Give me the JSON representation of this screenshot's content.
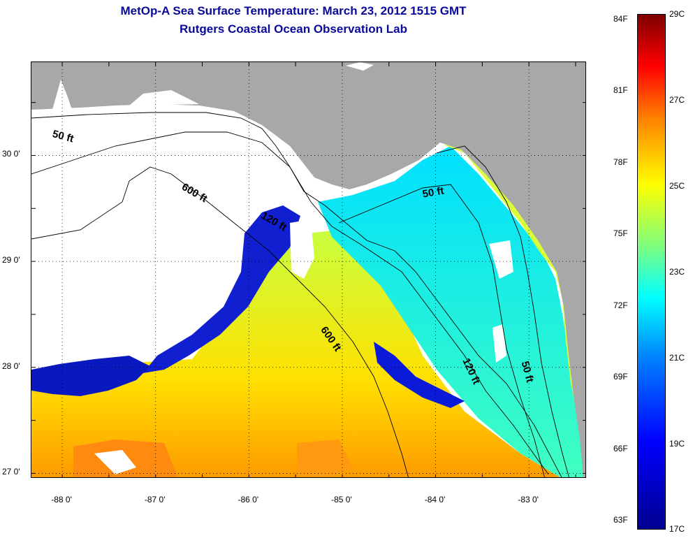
{
  "title": {
    "line1": "MetOp-A Sea Surface Temperature:  March 23, 2012 1515 GMT",
    "line2": "Rutgers Coastal Ocean Observation Lab"
  },
  "map": {
    "lon_range": [
      -88.33,
      -82.38
    ],
    "lat_range": [
      26.95,
      30.88
    ],
    "lat_ticks": [
      {
        "value": 30,
        "label": "30 0'"
      },
      {
        "value": 29,
        "label": "29 0'"
      },
      {
        "value": 28,
        "label": "28 0'"
      },
      {
        "value": 27,
        "label": "27 0'"
      }
    ],
    "lon_ticks": [
      {
        "value": -88,
        "label": "-88 0'"
      },
      {
        "value": -87,
        "label": "-87 0'"
      },
      {
        "value": -86,
        "label": "-86 0'"
      },
      {
        "value": -85,
        "label": "-85 0'"
      },
      {
        "value": -84,
        "label": "-84 0'"
      },
      {
        "value": -83,
        "label": "-83 0'"
      }
    ],
    "contour_labels": [
      {
        "text": "50 ft",
        "lon": -88.0,
        "lat": 30.15,
        "rotate": 15
      },
      {
        "text": "600 ft",
        "lon": -86.6,
        "lat": 29.62,
        "rotate": 30
      },
      {
        "text": "120 ft",
        "lon": -85.75,
        "lat": 29.35,
        "rotate": 30
      },
      {
        "text": "50 ft",
        "lon": -84.02,
        "lat": 29.62,
        "rotate": -10
      },
      {
        "text": "600 ft",
        "lon": -85.15,
        "lat": 28.25,
        "rotate": 55
      },
      {
        "text": "120 ft",
        "lon": -83.65,
        "lat": 27.95,
        "rotate": 65
      },
      {
        "text": "50 ft",
        "lon": -83.05,
        "lat": 27.95,
        "rotate": 75
      }
    ],
    "land_color": "#a8a8a8",
    "no_data_color": "#ffffff"
  },
  "colorbar": {
    "min_c": 17,
    "max_c": 29,
    "celsius_labels": [
      "29C",
      "27C",
      "25C",
      "23C",
      "21C",
      "19C",
      "17C"
    ],
    "fahrenheit_labels": [
      "84F",
      "81F",
      "78F",
      "75F",
      "72F",
      "69F",
      "66F",
      "63F"
    ],
    "colors": [
      "#00008f",
      "#0000ff",
      "#007fff",
      "#00ffff",
      "#7fff7f",
      "#ffff00",
      "#ff7f00",
      "#ff0000",
      "#7f0000"
    ]
  }
}
